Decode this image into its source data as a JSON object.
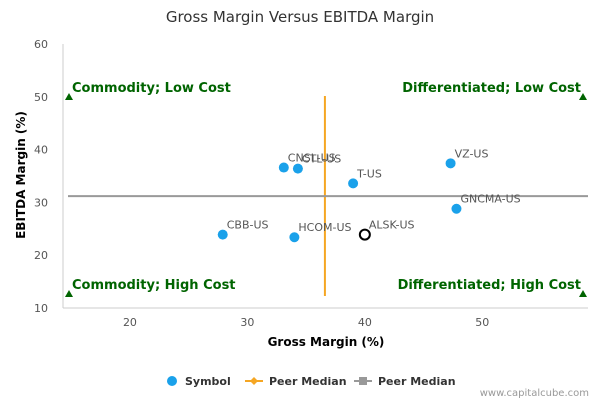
{
  "chart_data": {
    "type": "scatter",
    "title": "Gross Margin Versus EBITDA Margin",
    "xlabel": "Gross Margin (%)",
    "ylabel": "EBITDA Margin (%)",
    "xlim": [
      14.3,
      59.0
    ],
    "ylim": [
      10,
      60
    ],
    "xticks": [
      20,
      30,
      40,
      50
    ],
    "yticks": [
      10,
      20,
      30,
      40,
      50,
      60
    ],
    "peer_median_x": 36.6,
    "peer_median_y": 31.2,
    "points": [
      {
        "label": "CNSL-US",
        "x": 33.1,
        "y": 36.6,
        "highlight": false
      },
      {
        "label": "CTL-US",
        "x": 34.3,
        "y": 36.4,
        "highlight": false
      },
      {
        "label": "T-US",
        "x": 39.0,
        "y": 33.6,
        "highlight": false
      },
      {
        "label": "VZ-US",
        "x": 47.3,
        "y": 37.4,
        "highlight": false
      },
      {
        "label": "GNCMA-US",
        "x": 47.8,
        "y": 28.8,
        "highlight": false
      },
      {
        "label": "CBB-US",
        "x": 27.9,
        "y": 23.9,
        "highlight": false
      },
      {
        "label": "HCOM-US",
        "x": 34.0,
        "y": 23.4,
        "highlight": false
      },
      {
        "label": "ALSK-US",
        "x": 40.0,
        "y": 23.9,
        "highlight": true
      }
    ],
    "quadrants": {
      "top_left": "Commodity; Low Cost",
      "top_right": "Differentiated; Low Cost",
      "bottom_left": "Commodity; High Cost",
      "bottom_right": "Differentiated; High Cost"
    },
    "legend": [
      {
        "label": "Symbol",
        "kind": "dot"
      },
      {
        "label": "Peer Median",
        "kind": "vline"
      },
      {
        "label": "Peer Median",
        "kind": "hline"
      }
    ],
    "colors": {
      "point": "#1aa1ea",
      "highlight_stroke": "#000000",
      "median_x": "#f5a623",
      "median_y": "#999999",
      "quadrant_text": "#006400",
      "marker": "#006400"
    }
  },
  "credit": "www.capitalcube.com"
}
